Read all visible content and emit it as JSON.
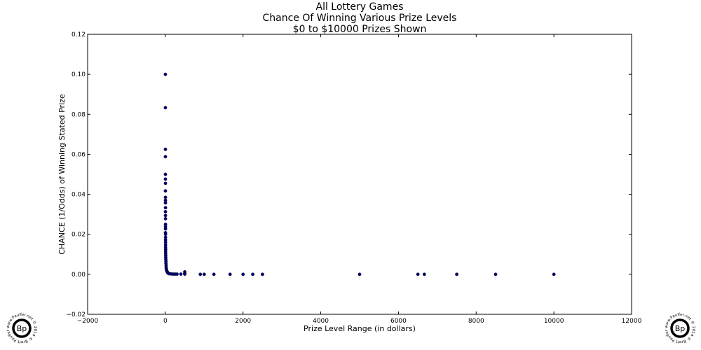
{
  "chart_data": {
    "type": "scatter",
    "title_lines": [
      "All Lottery Games",
      "Chance Of Winning Various Prize Levels",
      "$0 to $10000 Prizes Shown"
    ],
    "xlabel": "Prize Level Range (in dollars)",
    "ylabel": "CHANCE (1/Odds) of Winning Stated Prize",
    "xlim": [
      -2000,
      12000
    ],
    "ylim": [
      -0.02,
      0.12
    ],
    "x_ticks": [
      -2000,
      0,
      2000,
      4000,
      6000,
      8000,
      10000,
      12000
    ],
    "x_tick_labels": [
      "−2000",
      "0",
      "2000",
      "4000",
      "6000",
      "8000",
      "10000",
      "12000"
    ],
    "y_ticks": [
      -0.02,
      0.0,
      0.02,
      0.04,
      0.06,
      0.08,
      0.1,
      0.12
    ],
    "y_tick_labels": [
      "−0.02",
      "0.00",
      "0.02",
      "0.04",
      "0.06",
      "0.08",
      "0.10",
      "0.12"
    ],
    "grid": false,
    "marker_color": "#00007f",
    "points": [
      {
        "x": 1,
        "y": 0.1
      },
      {
        "x": 1,
        "y": 0.0833
      },
      {
        "x": 2,
        "y": 0.0625
      },
      {
        "x": 2,
        "y": 0.0588
      },
      {
        "x": 2,
        "y": 0.05
      },
      {
        "x": 2,
        "y": 0.0476
      },
      {
        "x": 3,
        "y": 0.0455
      },
      {
        "x": 2,
        "y": 0.0417
      },
      {
        "x": 3,
        "y": 0.0385
      },
      {
        "x": 3,
        "y": 0.037
      },
      {
        "x": 3,
        "y": 0.0357
      },
      {
        "x": 4,
        "y": 0.0333
      },
      {
        "x": 2,
        "y": 0.0313
      },
      {
        "x": 3,
        "y": 0.0294
      },
      {
        "x": 4,
        "y": 0.0278
      },
      {
        "x": 5,
        "y": 0.025
      },
      {
        "x": 4,
        "y": 0.0238
      },
      {
        "x": 5,
        "y": 0.0227
      },
      {
        "x": 4,
        "y": 0.0208
      },
      {
        "x": 5,
        "y": 0.02
      },
      {
        "x": 5,
        "y": 0.0185
      },
      {
        "x": 5,
        "y": 0.0172
      },
      {
        "x": 6,
        "y": 0.016
      },
      {
        "x": 6,
        "y": 0.0147
      },
      {
        "x": 5,
        "y": 0.0135
      },
      {
        "x": 8,
        "y": 0.0125
      },
      {
        "x": 7,
        "y": 0.0115
      },
      {
        "x": 8,
        "y": 0.0105
      },
      {
        "x": 10,
        "y": 0.0095
      },
      {
        "x": 10,
        "y": 0.0085
      },
      {
        "x": 12,
        "y": 0.0075
      },
      {
        "x": 15,
        "y": 0.0065
      },
      {
        "x": 15,
        "y": 0.0055
      },
      {
        "x": 20,
        "y": 0.0045
      },
      {
        "x": 20,
        "y": 0.0035
      },
      {
        "x": 25,
        "y": 0.0028
      },
      {
        "x": 30,
        "y": 0.0022
      },
      {
        "x": 40,
        "y": 0.0016
      },
      {
        "x": 50,
        "y": 0.0012
      },
      {
        "x": 60,
        "y": 0.0008
      },
      {
        "x": 75,
        "y": 0.0005
      },
      {
        "x": 100,
        "y": 0.0003
      },
      {
        "x": 150,
        "y": 0.0002
      },
      {
        "x": 200,
        "y": 0.0001
      },
      {
        "x": 250,
        "y": 0.0001
      },
      {
        "x": 300,
        "y": 0.0001
      },
      {
        "x": 400,
        "y": 0.0001
      },
      {
        "x": 500,
        "y": 0.0012
      },
      {
        "x": 500,
        "y": 0.0004
      },
      {
        "x": 500,
        "y": 0.0001
      },
      {
        "x": 900,
        "y": 0.0
      },
      {
        "x": 1000,
        "y": 0.0
      },
      {
        "x": 1250,
        "y": 0.0
      },
      {
        "x": 1666,
        "y": 0.0
      },
      {
        "x": 2000,
        "y": 0.0
      },
      {
        "x": 2250,
        "y": 0.0
      },
      {
        "x": 2500,
        "y": 0.0
      },
      {
        "x": 5000,
        "y": 0.0
      },
      {
        "x": 6500,
        "y": 0.0
      },
      {
        "x": 6666,
        "y": 0.0
      },
      {
        "x": 7500,
        "y": 0.0
      },
      {
        "x": 8500,
        "y": 0.0
      },
      {
        "x": 10000,
        "y": 0.0
      }
    ]
  },
  "watermark": {
    "initials": "Bp",
    "ring_text": "www.Paulfer.net © 2014 © Brett Paufler ©"
  }
}
